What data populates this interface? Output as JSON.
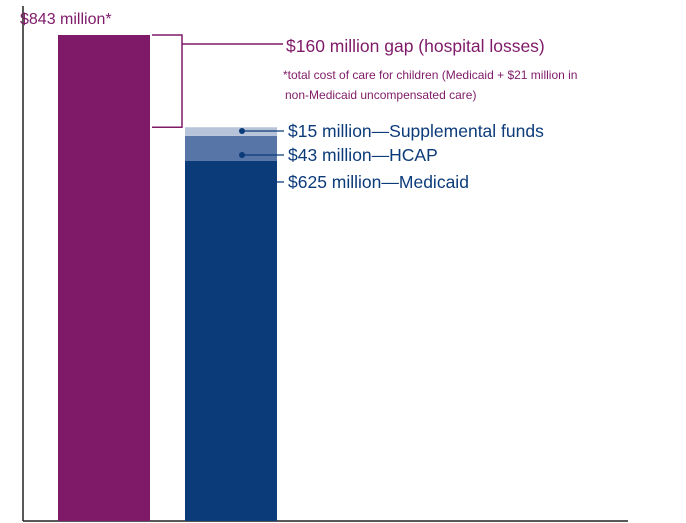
{
  "chart_data": {
    "type": "bar",
    "unit": "$ million",
    "bars": [
      {
        "key": "total",
        "segments": [
          {
            "key": "total_cost",
            "value": 843,
            "color": "#7f1a68"
          }
        ],
        "top_label": "$843 million*"
      },
      {
        "key": "payments",
        "segments": [
          {
            "key": "medicaid",
            "value": 625,
            "color": "#0c3b7a"
          },
          {
            "key": "hcap",
            "value": 43,
            "color": "#5775a6"
          },
          {
            "key": "supplemental",
            "value": 15,
            "color": "#b7c3d9"
          }
        ]
      }
    ],
    "gap": {
      "value": 160,
      "label": "$160 million gap (hospital losses)",
      "color": "#7f1a68"
    },
    "callouts": [
      {
        "segment": "supplemental",
        "label": "$15 million—Supplemental funds"
      },
      {
        "segment": "hcap",
        "label": "$43 million—HCAP"
      },
      {
        "segment": "medicaid",
        "label": "$625 million—Medicaid"
      }
    ],
    "footnote": {
      "lines": [
        "*total cost of care for children (Medicaid + $21 million in",
        "non-Medicaid uncompensated care)"
      ],
      "color": "#7f1a68"
    },
    "callout_color": "#0c3b7a",
    "axis_color": "#222222",
    "ylim": [
      0,
      843
    ]
  }
}
